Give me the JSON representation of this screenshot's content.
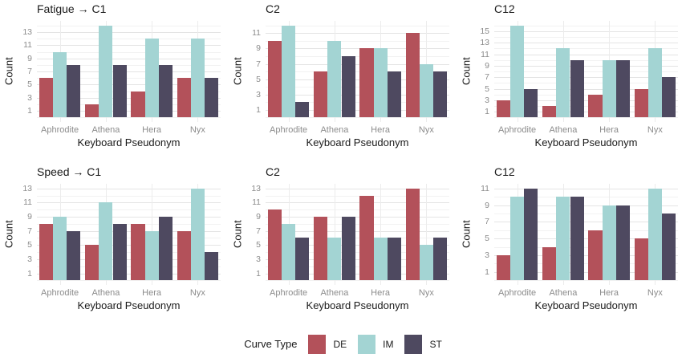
{
  "colors": {
    "DE": "#b3515a",
    "IM": "#a3d4d3",
    "ST": "#4e4960",
    "grid_major": "#e4e4e4",
    "grid_minor": "#f2f2f2",
    "grid_vertical": "#ececec",
    "tick_label": "#8c8c8c",
    "text": "#1a1a1a",
    "background": "#ffffff"
  },
  "legend": {
    "title": "Curve Type",
    "entries": [
      {
        "name": "DE",
        "color": "#b3515a"
      },
      {
        "name": "IM",
        "color": "#a3d4d3"
      },
      {
        "name": "ST",
        "color": "#4e4960"
      }
    ]
  },
  "chart_data": [
    {
      "type": "bar",
      "title": "Fatigue → C1",
      "xlabel": "Keyboard Pseudonym",
      "ylabel": "Count",
      "categories": [
        "Aphrodite",
        "Athena",
        "Hera",
        "Nyx"
      ],
      "yticks": [
        1,
        3,
        5,
        7,
        9,
        11,
        13
      ],
      "ylim": [
        -0.7,
        14.7
      ],
      "grid": true,
      "legend_position": "bottom",
      "series": [
        {
          "name": "DE",
          "values": [
            6,
            2,
            4,
            6
          ]
        },
        {
          "name": "IM",
          "values": [
            10,
            14,
            12,
            12
          ]
        },
        {
          "name": "ST",
          "values": [
            8,
            8,
            8,
            6
          ]
        }
      ]
    },
    {
      "type": "bar",
      "title": "C2",
      "xlabel": "Keyboard Pseudonym",
      "ylabel": "Count",
      "categories": [
        "Aphrodite",
        "Athena",
        "Hera",
        "Nyx"
      ],
      "yticks": [
        1,
        3,
        5,
        7,
        9,
        11
      ],
      "ylim": [
        -0.6,
        12.6
      ],
      "grid": true,
      "legend_position": "bottom",
      "series": [
        {
          "name": "DE",
          "values": [
            10,
            6,
            9,
            11
          ]
        },
        {
          "name": "IM",
          "values": [
            12,
            10,
            9,
            7
          ]
        },
        {
          "name": "ST",
          "values": [
            2,
            8,
            6,
            6
          ]
        }
      ]
    },
    {
      "type": "bar",
      "title": "C12",
      "xlabel": "Keyboard Pseudonym",
      "ylabel": "Count",
      "categories": [
        "Aphrodite",
        "Athena",
        "Hera",
        "Nyx"
      ],
      "yticks": [
        1,
        3,
        5,
        7,
        9,
        11,
        13,
        15
      ],
      "ylim": [
        -0.8,
        16.8
      ],
      "grid": true,
      "legend_position": "bottom",
      "series": [
        {
          "name": "DE",
          "values": [
            3,
            2,
            4,
            5
          ]
        },
        {
          "name": "IM",
          "values": [
            16,
            12,
            10,
            12
          ]
        },
        {
          "name": "ST",
          "values": [
            5,
            10,
            10,
            7
          ]
        }
      ]
    },
    {
      "type": "bar",
      "title": "Speed → C1",
      "xlabel": "Keyboard Pseudonym",
      "ylabel": "Count",
      "categories": [
        "Aphrodite",
        "Athena",
        "Hera",
        "Nyx"
      ],
      "yticks": [
        1,
        3,
        5,
        7,
        9,
        11,
        13
      ],
      "ylim": [
        -0.65,
        13.65
      ],
      "grid": true,
      "legend_position": "bottom",
      "series": [
        {
          "name": "DE",
          "values": [
            8,
            5,
            8,
            7
          ]
        },
        {
          "name": "IM",
          "values": [
            9,
            11,
            7,
            13
          ]
        },
        {
          "name": "ST",
          "values": [
            7,
            8,
            9,
            4
          ]
        }
      ]
    },
    {
      "type": "bar",
      "title": "C2",
      "xlabel": "Keyboard Pseudonym",
      "ylabel": "Count",
      "categories": [
        "Aphrodite",
        "Athena",
        "Hera",
        "Nyx"
      ],
      "yticks": [
        1,
        3,
        5,
        7,
        9,
        11,
        13
      ],
      "ylim": [
        -0.65,
        13.65
      ],
      "grid": true,
      "legend_position": "bottom",
      "series": [
        {
          "name": "DE",
          "values": [
            10,
            9,
            12,
            13
          ]
        },
        {
          "name": "IM",
          "values": [
            8,
            6,
            6,
            5
          ]
        },
        {
          "name": "ST",
          "values": [
            6,
            9,
            6,
            6
          ]
        }
      ]
    },
    {
      "type": "bar",
      "title": "C12",
      "xlabel": "Keyboard Pseudonym",
      "ylabel": "Count",
      "categories": [
        "Aphrodite",
        "Athena",
        "Hera",
        "Nyx"
      ],
      "yticks": [
        1,
        3,
        5,
        7,
        9,
        11
      ],
      "ylim": [
        -0.55,
        11.55
      ],
      "grid": true,
      "legend_position": "bottom",
      "series": [
        {
          "name": "DE",
          "values": [
            3,
            4,
            6,
            5
          ]
        },
        {
          "name": "IM",
          "values": [
            10,
            10,
            9,
            11
          ]
        },
        {
          "name": "ST",
          "values": [
            11,
            10,
            9,
            8
          ]
        }
      ]
    }
  ]
}
